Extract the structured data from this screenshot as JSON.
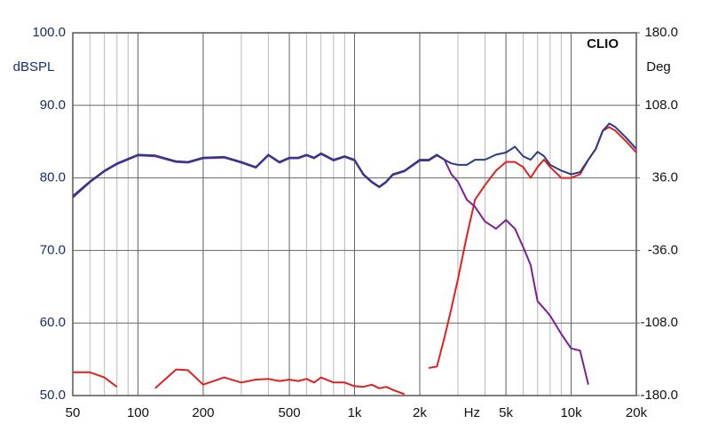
{
  "chart_data": {
    "type": "line",
    "title": "CLIO",
    "ylabel": "dBSPL",
    "y2label": "Deg",
    "xlabel": "Hz",
    "log_x": true,
    "grid": true,
    "x": [
      50,
      60,
      70,
      80,
      100,
      120,
      150,
      170,
      200,
      250,
      300,
      350,
      400,
      450,
      500,
      550,
      600,
      650,
      700,
      800,
      900,
      1000,
      1100,
      1200,
      1300,
      1400,
      1500,
      1700,
      2000,
      2200,
      2400,
      2600,
      2800,
      3000,
      3300,
      3600,
      4000,
      4500,
      5000,
      5500,
      6000,
      6500,
      7000,
      7500,
      8000,
      9000,
      10000,
      11000,
      12000,
      13000,
      14000,
      15000,
      16000,
      18000,
      20000
    ],
    "series": [
      {
        "color": "#e02020",
        "values": [
          53.2,
          53.2,
          52.5,
          51.2,
          null,
          51,
          53.6,
          53.5,
          51.5,
          52.5,
          51.8,
          52.2,
          52.3,
          52,
          52.2,
          52,
          52.3,
          51.8,
          52.5,
          51.8,
          51.8,
          51.3,
          51.2,
          51.5,
          51,
          51.2,
          50.8,
          50.2,
          null,
          53.8,
          54,
          58,
          62,
          66,
          72,
          77,
          79,
          81,
          82.2,
          82.2,
          81.5,
          80,
          81.5,
          82.5,
          81.5,
          80,
          80,
          80.5,
          82.5,
          84,
          86.5,
          87,
          86.5,
          85,
          83.5
        ]
      },
      {
        "color": "#7a1f9a",
        "values": [
          77.3,
          79.4,
          80.9,
          81.9,
          83.1,
          83,
          82.2,
          82.1,
          82.7,
          82.8,
          82.1,
          81.4,
          83.1,
          82.1,
          82.7,
          82.7,
          83.1,
          82.7,
          83.3,
          82.4,
          82.9,
          82.4,
          80.4,
          79.4,
          78.7,
          79.4,
          80.4,
          80.9,
          82.4,
          82.4,
          83.1,
          82.5,
          80.5,
          79.5,
          77,
          76,
          74,
          73,
          74.2,
          73,
          70.5,
          68,
          63,
          62,
          61,
          58.5,
          56.5,
          56.2,
          51.5,
          null,
          null,
          null,
          null,
          null,
          null
        ]
      },
      {
        "color": "#2b3a8a",
        "values": [
          77.5,
          79.5,
          81,
          82,
          83.2,
          83.1,
          82.3,
          82.2,
          82.8,
          82.9,
          82.2,
          81.5,
          83.2,
          82.2,
          82.8,
          82.8,
          83.2,
          82.8,
          83.4,
          82.5,
          83,
          82.5,
          80.5,
          79.5,
          78.8,
          79.5,
          80.5,
          81,
          82.5,
          82.5,
          83.2,
          82.5,
          82,
          81.8,
          81.8,
          82.5,
          82.5,
          83.2,
          83.5,
          84.3,
          83,
          82.5,
          83.6,
          83,
          81.8,
          81,
          80.5,
          80.8,
          82.5,
          84,
          86.5,
          87.5,
          87,
          85.5,
          84
        ]
      }
    ],
    "xlim": [
      50,
      20000
    ],
    "xticks": [
      50,
      100,
      200,
      500,
      {
        "value": 1000,
        "label": "1k"
      },
      {
        "value": 2000,
        "label": "2k"
      },
      {
        "value": 5000,
        "label": "5k"
      },
      {
        "value": 10000,
        "label": "10k"
      },
      {
        "value": 20000,
        "label": "20k"
      }
    ],
    "ylim": [
      50,
      100
    ],
    "yticks": [
      {
        "value": 50,
        "label": "50.0"
      },
      {
        "value": 60,
        "label": "60.0"
      },
      {
        "value": 70,
        "label": "70.0"
      },
      {
        "value": 80,
        "label": "80.0"
      },
      {
        "value": 90,
        "label": "90.0"
      },
      {
        "value": 100,
        "label": "100.0"
      }
    ],
    "y2lim": [
      -180,
      180
    ],
    "y2ticks": [
      {
        "value": -180,
        "label": "-180.0"
      },
      {
        "value": -108,
        "label": "-108.0"
      },
      {
        "value": -36,
        "label": "-36.0"
      },
      {
        "value": 36,
        "label": "36.0"
      },
      {
        "value": 108,
        "label": "108.0"
      },
      {
        "value": 180,
        "label": "180.0"
      }
    ]
  }
}
